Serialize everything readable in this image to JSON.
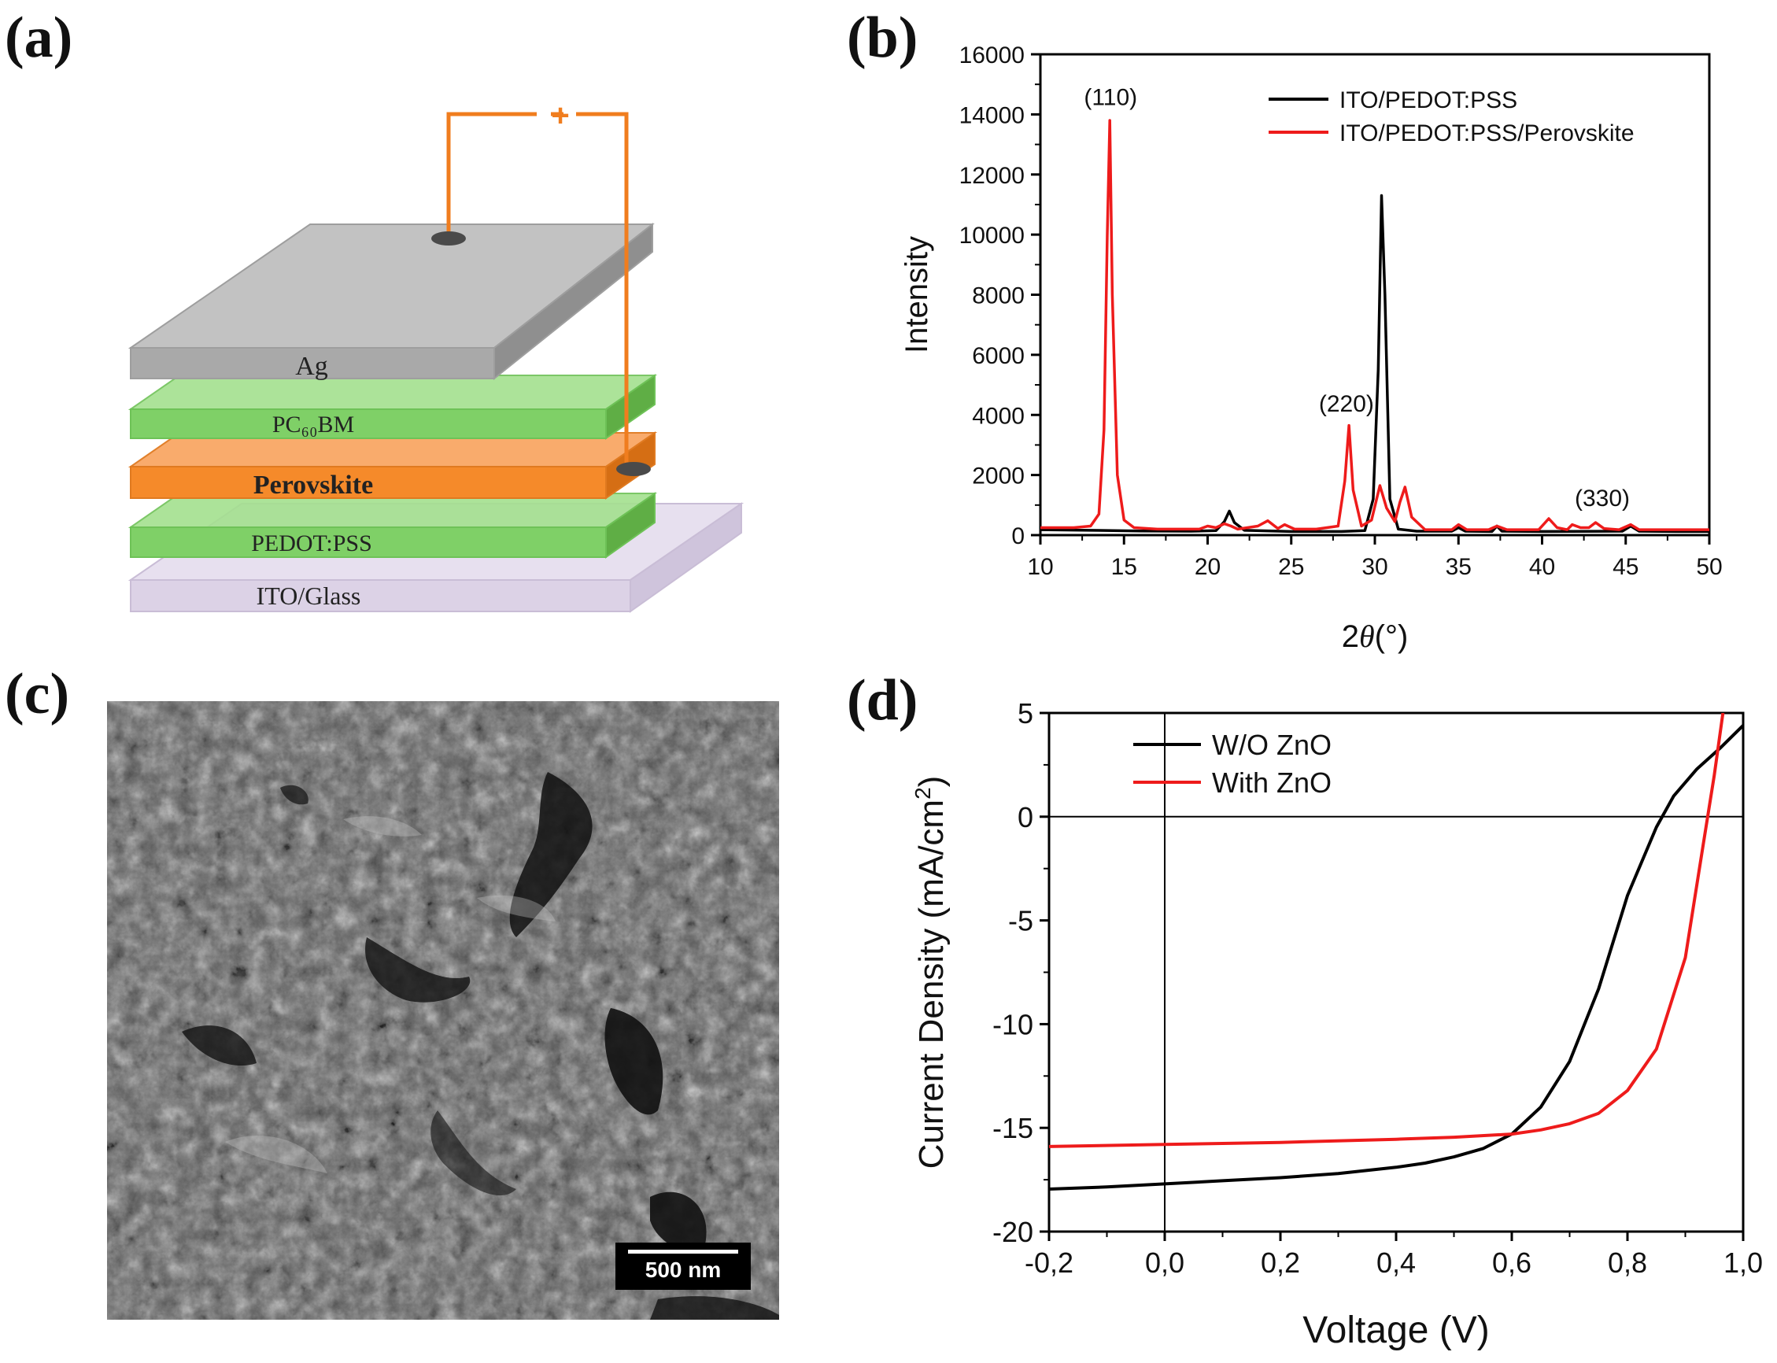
{
  "panel_labels": {
    "a": "(a)",
    "b": "(b)",
    "c": "(c)",
    "d": "(d)"
  },
  "device": {
    "layers": [
      "Ag",
      "PC₆₀BM",
      "Perovskite",
      "PEDOT:PSS",
      "ITO/Glass"
    ],
    "circuit_minus": "-",
    "circuit_plus": "+",
    "colors": {
      "ag": "#a9a9a9",
      "pcbm": "#7fd067",
      "perovskite": "#f58a2a",
      "pedot": "#7fd067",
      "ito": "#dcd2e6",
      "wire": "#f07d1e"
    }
  },
  "sem": {
    "scale_label": "500 nm"
  },
  "chart_data": [
    {
      "id": "xrd",
      "type": "line",
      "xlabel_prefix": "2",
      "xlabel_theta": "θ",
      "xlabel_unit": "(°)",
      "ylabel": "Intensity",
      "xlim": [
        10,
        50
      ],
      "ylim": [
        0,
        16000
      ],
      "xticks": [
        "10",
        "15",
        "20",
        "25",
        "30",
        "35",
        "40",
        "45",
        "50"
      ],
      "yticks": [
        "0",
        "2000",
        "4000",
        "6000",
        "8000",
        "10000",
        "12000",
        "14000",
        "16000"
      ],
      "series": [
        {
          "name": "ITO/PEDOT:PSS",
          "color": "#000000",
          "x": [
            10,
            13,
            16,
            19,
            20.5,
            21.0,
            21.3,
            21.6,
            22.2,
            25,
            28,
            29.4,
            29.9,
            30.2,
            30.4,
            30.6,
            30.9,
            31.4,
            32.5,
            34.6,
            35.0,
            35.4,
            37.0,
            37.3,
            37.6,
            40,
            44.8,
            45.3,
            45.8,
            48,
            50
          ],
          "y": [
            180,
            160,
            140,
            130,
            150,
            450,
            800,
            420,
            160,
            120,
            120,
            150,
            1200,
            5500,
            11300,
            8000,
            1200,
            200,
            130,
            130,
            250,
            130,
            120,
            300,
            130,
            120,
            130,
            300,
            130,
            120,
            120
          ]
        },
        {
          "name": "ITO/PEDOT:PSS/Perovskite",
          "color": "#ee1b1b",
          "x": [
            10,
            12,
            13.0,
            13.5,
            13.8,
            14.0,
            14.15,
            14.3,
            14.6,
            15.0,
            15.6,
            17,
            19.5,
            20.0,
            20.5,
            21.0,
            21.4,
            21.8,
            23.0,
            23.6,
            24.2,
            24.6,
            25.2,
            26.5,
            27.8,
            28.2,
            28.45,
            28.7,
            29.2,
            29.8,
            30.3,
            30.7,
            31.2,
            31.5,
            31.8,
            32.2,
            33,
            34.6,
            35.0,
            35.5,
            36.8,
            37.3,
            37.9,
            39.8,
            40.4,
            40.9,
            41.5,
            41.8,
            42.3,
            42.8,
            43.2,
            43.7,
            44.6,
            45.3,
            45.8,
            47,
            50
          ],
          "y": [
            250,
            250,
            300,
            700,
            3500,
            10000,
            13800,
            8000,
            2000,
            500,
            250,
            200,
            200,
            300,
            250,
            380,
            300,
            200,
            300,
            480,
            220,
            350,
            200,
            200,
            300,
            1800,
            3650,
            1500,
            300,
            500,
            1650,
            900,
            450,
            1100,
            1600,
            600,
            180,
            180,
            350,
            180,
            180,
            300,
            180,
            180,
            550,
            250,
            180,
            350,
            250,
            250,
            420,
            220,
            180,
            350,
            180,
            180,
            180
          ]
        }
      ],
      "annotations": [
        {
          "text": "(110)",
          "x": 14.2,
          "y": 14000
        },
        {
          "text": "(220)",
          "x": 28.3,
          "y": 3800
        },
        {
          "text": "(330)",
          "x": 43.6,
          "y": 650
        }
      ]
    },
    {
      "id": "jv",
      "type": "line",
      "xlabel": "Voltage (V)",
      "ylabel": "Current Density (mA/cm",
      "ylabel_sup": "2",
      "ylabel_close": ")",
      "xlim": [
        -0.2,
        1.0
      ],
      "ylim": [
        -20,
        5
      ],
      "xticks": [
        "-0,2",
        "0,0",
        "0,2",
        "0,4",
        "0,6",
        "0,8",
        "1,0"
      ],
      "yticks": [
        "-20",
        "-15",
        "-10",
        "-5",
        "0",
        "5"
      ],
      "series": [
        {
          "name": "W/O ZnO",
          "color": "#000000",
          "x": [
            -0.2,
            -0.1,
            0.0,
            0.1,
            0.2,
            0.3,
            0.4,
            0.45,
            0.5,
            0.55,
            0.6,
            0.65,
            0.7,
            0.75,
            0.8,
            0.85,
            0.88,
            0.92,
            0.96,
            1.0
          ],
          "y": [
            -17.95,
            -17.85,
            -17.7,
            -17.55,
            -17.4,
            -17.2,
            -16.9,
            -16.7,
            -16.4,
            -16.0,
            -15.3,
            -14.0,
            -11.8,
            -8.3,
            -3.8,
            -0.5,
            1.0,
            2.3,
            3.3,
            4.4
          ]
        },
        {
          "name": "With ZnO",
          "color": "#ee1b1b",
          "x": [
            -0.2,
            0.0,
            0.2,
            0.4,
            0.5,
            0.6,
            0.65,
            0.7,
            0.75,
            0.8,
            0.85,
            0.9,
            0.93,
            0.95,
            0.965
          ],
          "y": [
            -15.9,
            -15.8,
            -15.7,
            -15.55,
            -15.45,
            -15.3,
            -15.1,
            -14.8,
            -14.3,
            -13.2,
            -11.2,
            -6.8,
            -1.5,
            2.0,
            5.0
          ]
        }
      ]
    }
  ]
}
